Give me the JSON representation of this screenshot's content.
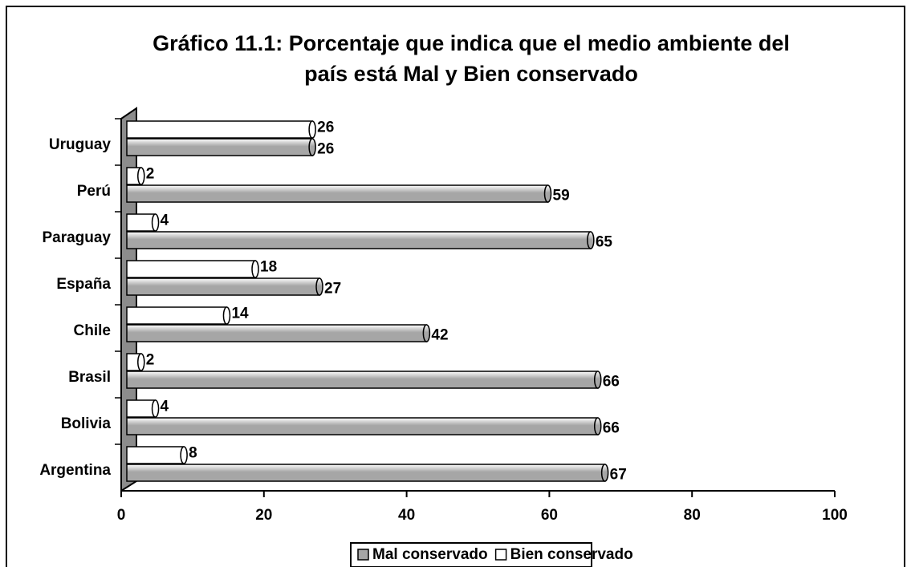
{
  "chart_data": {
    "type": "bar",
    "orientation": "horizontal",
    "title": [
      "Gráfico 11.1: Porcentaje que indica que el medio ambiente del",
      "país está Mal y Bien conservado"
    ],
    "categories": [
      "Argentina",
      "Bolivia",
      "Brasil",
      "Chile",
      "España",
      "Paraguay",
      "Perú",
      "Uruguay"
    ],
    "series": [
      {
        "name": "Mal conservado",
        "color": "#a6a6a6",
        "values": [
          67,
          66,
          66,
          42,
          27,
          65,
          59,
          26
        ]
      },
      {
        "name": "Bien conservado",
        "color": "#ffffff",
        "values": [
          8,
          4,
          2,
          14,
          18,
          4,
          2,
          26
        ]
      }
    ],
    "xlim": [
      0,
      100
    ],
    "xticks": [
      0,
      20,
      40,
      60,
      80,
      100
    ],
    "grid": false,
    "legend": "bottom"
  }
}
